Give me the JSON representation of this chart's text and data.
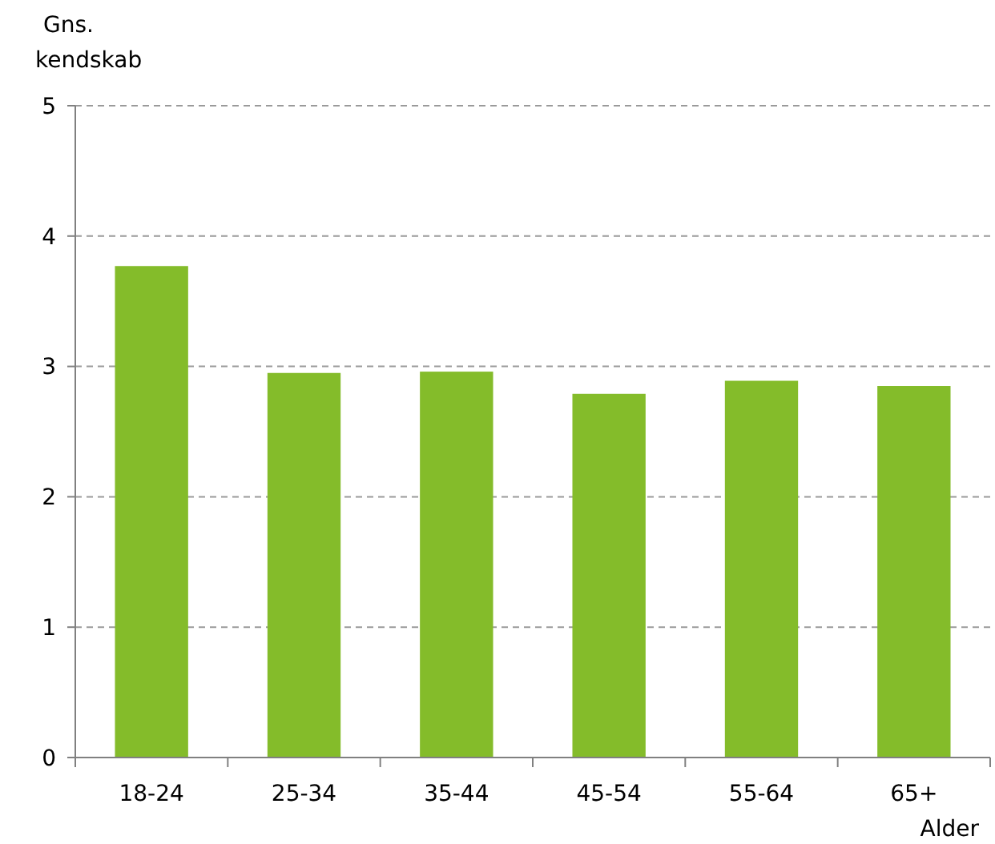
{
  "chart_data": {
    "type": "bar",
    "ylabel": "Gns. kendskab",
    "xlabel": "Alder",
    "categories": [
      "18-24",
      "25-34",
      "35-44",
      "45-54",
      "55-64",
      "65+"
    ],
    "values": [
      3.77,
      2.95,
      2.96,
      2.79,
      2.89,
      2.85
    ],
    "color": "#84bc2a",
    "ylim": [
      0,
      5
    ],
    "yticks": [
      0,
      1,
      2,
      3,
      4,
      5
    ],
    "grid": "y"
  }
}
